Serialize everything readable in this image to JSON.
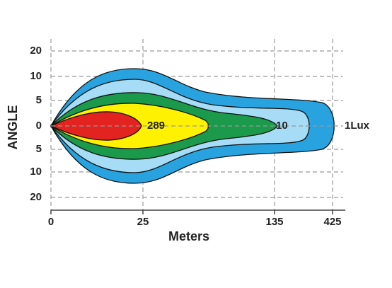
{
  "x_axis": {
    "label": "Meters",
    "ticks": [
      "0",
      "25",
      "135",
      "425"
    ]
  },
  "y_axis": {
    "label": "ANGLE",
    "ticks": [
      "20",
      "10",
      "5",
      "0",
      "5",
      "10",
      "20"
    ]
  },
  "contour_labels": [
    "289",
    "10",
    "1Lux"
  ]
}
